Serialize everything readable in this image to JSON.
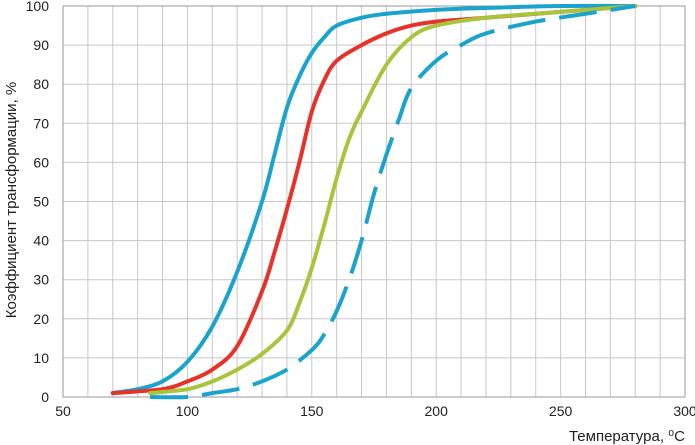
{
  "chart_data": {
    "type": "line",
    "title": "",
    "xlabel": "Температура, ⁰С",
    "ylabel": "Коэффициент трансформации, %",
    "xlim": [
      50,
      300
    ],
    "ylim": [
      0,
      100
    ],
    "x_ticks": [
      "50",
      "100",
      "150",
      "200",
      "250",
      "300"
    ],
    "y_ticks": [
      "0",
      "10",
      "20",
      "30",
      "40",
      "50",
      "60",
      "70",
      "80",
      "90",
      "100"
    ],
    "grid": true,
    "legend": "none",
    "series": [
      {
        "color": "#1aa3cc",
        "dashed": false,
        "x": [
          70,
          80,
          90,
          100,
          110,
          120,
          130,
          135,
          140,
          145,
          150,
          155,
          160,
          170,
          180,
          200,
          220,
          250,
          280
        ],
        "y": [
          1,
          2,
          4,
          9,
          18,
          32,
          50,
          62,
          74,
          82,
          88,
          92,
          95,
          97,
          98,
          99,
          99.5,
          100,
          100
        ]
      },
      {
        "color": "#e63228",
        "dashed": false,
        "x": [
          70,
          90,
          100,
          110,
          120,
          130,
          135,
          140,
          145,
          150,
          155,
          160,
          170,
          180,
          190,
          200,
          220,
          250,
          280
        ],
        "y": [
          1,
          2,
          4,
          7,
          13,
          27,
          37,
          48,
          60,
          73,
          81,
          86,
          90,
          93,
          95,
          96,
          97,
          98.5,
          100
        ]
      },
      {
        "color": "#a8c43a",
        "dashed": false,
        "x": [
          85,
          100,
          110,
          120,
          130,
          140,
          145,
          150,
          155,
          160,
          165,
          170,
          180,
          190,
          200,
          220,
          250,
          280
        ],
        "y": [
          1,
          2,
          4,
          7,
          11,
          17,
          24,
          33,
          44,
          56,
          66,
          73,
          85,
          92,
          95,
          97,
          98.5,
          100
        ]
      },
      {
        "color": "#1aa3cc",
        "dashed": true,
        "x": [
          85,
          100,
          110,
          120,
          130,
          140,
          150,
          155,
          160,
          165,
          170,
          175,
          180,
          185,
          190,
          200,
          210,
          220,
          240,
          260,
          280
        ],
        "y": [
          0,
          0,
          1,
          2,
          4,
          7,
          12,
          16,
          22,
          30,
          40,
          52,
          62,
          71,
          79,
          86,
          90,
          93,
          96,
          98,
          100
        ]
      }
    ]
  }
}
